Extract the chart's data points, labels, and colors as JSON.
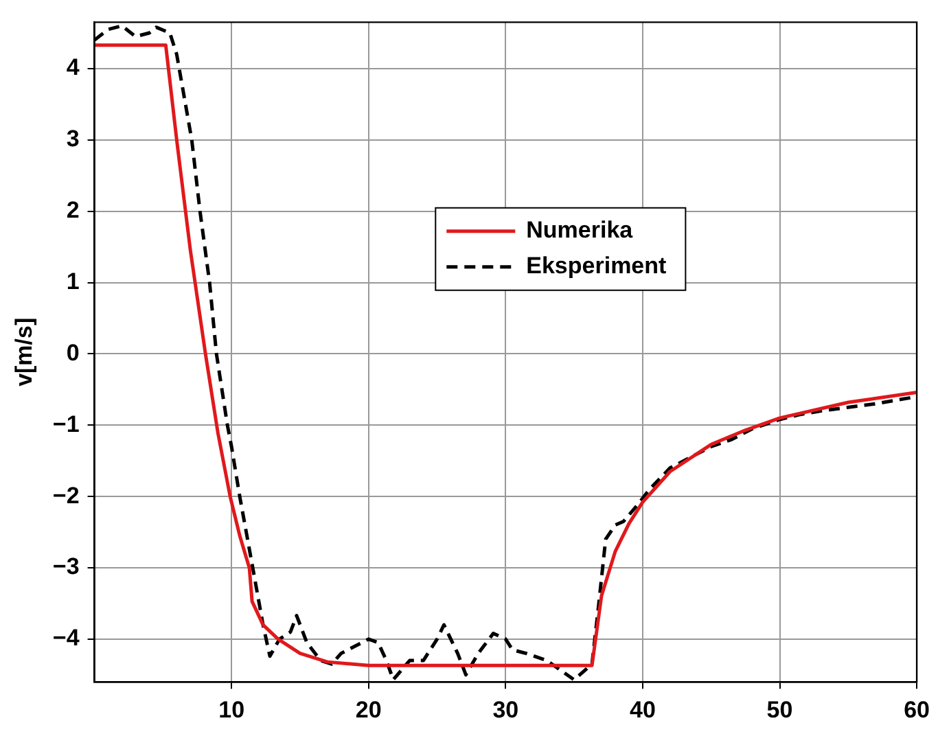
{
  "chart_data": {
    "type": "line",
    "ylabel": "v[m/s]",
    "xlim": [
      0,
      60
    ],
    "ylim": [
      -4.6,
      4.65
    ],
    "xticks": [
      10,
      20,
      30,
      40,
      50,
      60
    ],
    "yticks": [
      -4,
      -3,
      -2,
      -1,
      0,
      1,
      2,
      3,
      4
    ],
    "grid": true,
    "legend": "center",
    "marker": "none",
    "series": [
      {
        "name": "Numerika",
        "color": "#e0191c",
        "line_style": "solid",
        "x": [
          0,
          5.2,
          6.0,
          7.0,
          8.1,
          9.0,
          9.9,
          10.6,
          11.3,
          11.5,
          12.3,
          13.4,
          15,
          17,
          20,
          25,
          30,
          36.3,
          37,
          38,
          39,
          40,
          42,
          45,
          47.5,
          50,
          55,
          60
        ],
        "values": [
          4.33,
          4.33,
          3.0,
          1.45,
          0,
          -1.1,
          -2.0,
          -2.55,
          -3.0,
          -3.47,
          -3.8,
          -4.0,
          -4.2,
          -4.32,
          -4.37,
          -4.37,
          -4.37,
          -4.37,
          -3.39,
          -2.77,
          -2.38,
          -2.08,
          -1.65,
          -1.27,
          -1.07,
          -0.9,
          -0.68,
          -0.54
        ]
      },
      {
        "name": "Eksperiment",
        "color": "#000000",
        "line_style": "dashed",
        "x": [
          0,
          1,
          2,
          3,
          4,
          4.5,
          5.5,
          6,
          7.1,
          7.7,
          8.4,
          8.9,
          9.7,
          10.0,
          10.6,
          11.55,
          12.3,
          12.8,
          13.5,
          14.3,
          14.75,
          15.5,
          16.5,
          17.3,
          18,
          19,
          20,
          20.7,
          21.3,
          21.8,
          23,
          24,
          25,
          25.5,
          26.5,
          27.1,
          28,
          29.1,
          30,
          30.5,
          31.5,
          33,
          35.0,
          36.3,
          36.8,
          37.3,
          38,
          38.6,
          39.7,
          40.5,
          42,
          43.5,
          45,
          46.5,
          48,
          50,
          51.5,
          53,
          55,
          57,
          58.5,
          60
        ],
        "values": [
          4.4,
          4.55,
          4.6,
          4.45,
          4.5,
          4.58,
          4.5,
          4.2,
          3,
          2,
          1,
          0,
          -1,
          -1.3,
          -2,
          -3,
          -3.8,
          -4.24,
          -4.0,
          -3.9,
          -3.67,
          -4.05,
          -4.3,
          -4.35,
          -4.2,
          -4.1,
          -4.0,
          -4.05,
          -4.3,
          -4.57,
          -4.3,
          -4.3,
          -4.0,
          -3.8,
          -4.2,
          -4.5,
          -4.2,
          -3.92,
          -4.0,
          -4.15,
          -4.2,
          -4.3,
          -4.57,
          -4.35,
          -3.5,
          -2.6,
          -2.4,
          -2.35,
          -2.1,
          -1.9,
          -1.6,
          -1.45,
          -1.3,
          -1.2,
          -1.05,
          -0.92,
          -0.85,
          -0.8,
          -0.75,
          -0.7,
          -0.65,
          -0.6
        ]
      }
    ]
  }
}
